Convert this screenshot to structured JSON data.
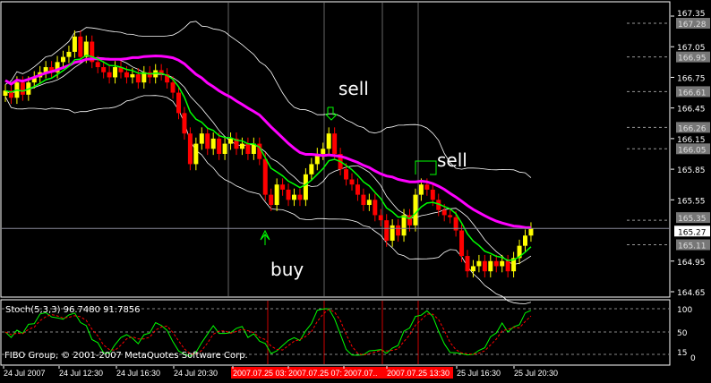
{
  "chart_data": {
    "type": "candlestick",
    "symbol_info": "FIBO Group, © 2001-2007 MetaQuotes Software Corp.",
    "price_ticks": [
      "167.35",
      "167.05",
      "166.75",
      "166.45",
      "166.15",
      "165.85",
      "165.55",
      "164.95",
      "164.65"
    ],
    "price_markers": [
      "167.28",
      "166.95",
      "166.61",
      "166.26",
      "166.05",
      "165.35",
      "165.11"
    ],
    "current_price": "165.27",
    "ylim": [
      164.65,
      167.35
    ],
    "closes": [
      166.62,
      166.55,
      166.7,
      166.58,
      166.7,
      166.75,
      166.8,
      166.85,
      166.8,
      166.9,
      166.95,
      167.0,
      167.15,
      166.95,
      167.1,
      166.9,
      166.85,
      166.8,
      166.75,
      166.85,
      166.8,
      166.75,
      166.78,
      166.7,
      166.8,
      166.75,
      166.82,
      166.78,
      166.7,
      166.6,
      166.4,
      166.2,
      165.9,
      166.1,
      166.2,
      166.05,
      166.15,
      166.0,
      166.1,
      166.15,
      166.05,
      166.1,
      166.0,
      166.1,
      165.95,
      165.6,
      165.5,
      165.7,
      165.65,
      165.55,
      165.6,
      165.55,
      165.8,
      165.9,
      166.0,
      166.05,
      166.2,
      166.0,
      165.85,
      165.75,
      165.7,
      165.6,
      165.5,
      165.55,
      165.4,
      165.35,
      165.15,
      165.3,
      165.2,
      165.4,
      165.3,
      165.6,
      165.7,
      165.65,
      165.55,
      165.45,
      165.4,
      165.38,
      165.25,
      165.0,
      164.85,
      164.9,
      164.95,
      164.85,
      164.95,
      164.9,
      164.95,
      164.85,
      164.98,
      165.1,
      165.2,
      165.27
    ],
    "up_color": "#ffff00",
    "down_color": "#ff0000",
    "ma_slow_color": "#ff00ff",
    "ma_fast_color": "#00ff00",
    "bands_color": "#ffffff",
    "annotations": [
      {
        "text": "sell",
        "price": 166.55,
        "bar": 58
      },
      {
        "text": "sell",
        "price": 165.85,
        "bar": 75
      },
      {
        "text": "buy",
        "price": 164.9,
        "bar": 47
      }
    ],
    "stochastic": {
      "label": "Stoch(5,3,3) 96.7480 91.7856",
      "levels": [
        "100",
        "50",
        "15",
        "0"
      ],
      "main_color": "#00ff00",
      "signal_color": "#ff0000"
    },
    "time_labels": [
      "24 Jul 2007",
      "24 Jul 12:30",
      "24 Jul 16:30",
      "24 Jul 20:30",
      "2007.07.25 03:",
      "2007.07.25 07:",
      "2007.07..",
      "2007.07.25 13:30",
      "25 Jul 16:30",
      "25 Jul 20:30"
    ]
  }
}
